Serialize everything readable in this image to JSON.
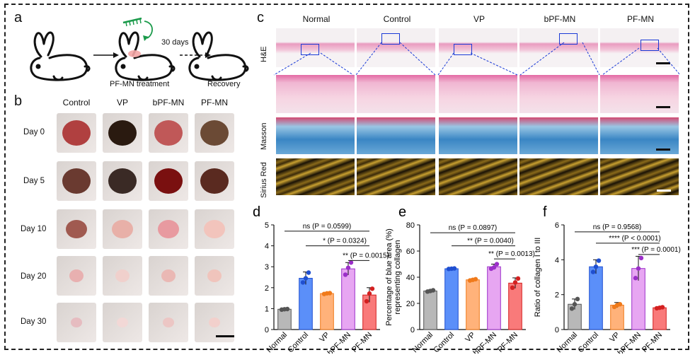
{
  "panel_a": {
    "label": "a",
    "treatment_caption": "PF-MN treatment",
    "interval": "30 days",
    "recovery_caption": "Recovery"
  },
  "panel_b": {
    "label": "b",
    "columns": [
      "Control",
      "VP",
      "bPF-MN",
      "PF-MN"
    ],
    "rows": [
      "Day 0",
      "Day 5",
      "Day 10",
      "Day 20",
      "Day 30"
    ]
  },
  "panel_c": {
    "label": "c",
    "columns": [
      "Normal",
      "Control",
      "VP",
      "bPF-MN",
      "PF-MN"
    ],
    "rows": [
      "H&E",
      "Masson",
      "Sirius Red"
    ]
  },
  "colors": {
    "Normal": "#b8b8b8",
    "Control": "#5b8ff9",
    "VP": "#ffb27a",
    "bPF-MN": "#e7a6f2",
    "PF-MN": "#f97a7a",
    "Normal_pt": "#555555",
    "Control_pt": "#1f4fd1",
    "VP_pt": "#f07a1a",
    "bPF-MN_pt": "#9b2fc9",
    "PF-MN_pt": "#d42020"
  },
  "chart_data": [
    {
      "label": "d",
      "type": "bar",
      "categories": [
        "Normal",
        "Control",
        "VP",
        "bPF-MN",
        "PF-MN"
      ],
      "values": [
        0.97,
        2.45,
        1.72,
        2.9,
        1.65
      ],
      "errors": [
        0.04,
        0.3,
        0.05,
        0.3,
        0.35
      ],
      "points": [
        [
          0.95,
          0.97,
          0.98
        ],
        [
          2.25,
          2.45,
          2.72
        ],
        [
          1.7,
          1.73,
          1.74
        ],
        [
          2.62,
          2.95,
          3.2
        ],
        [
          1.35,
          1.72,
          1.95
        ]
      ],
      "ylabel": "SEI",
      "ylim": [
        0,
        5
      ],
      "yticks": [
        0,
        1,
        2,
        3,
        4,
        5
      ],
      "annotations": [
        {
          "text": "ns (P = 0.0599)",
          "from": 0,
          "to": 4,
          "y": 4.7
        },
        {
          "text": "* (P = 0.0324)",
          "from": 1,
          "to": 4,
          "y": 4.0
        },
        {
          "text": "** (P = 0.0015)",
          "from": 3,
          "to": 4,
          "y": 3.3
        }
      ]
    },
    {
      "label": "e",
      "type": "bar",
      "categories": [
        "Normal",
        "Control",
        "VP",
        "bPF-MN",
        "PF-MN"
      ],
      "values": [
        29.5,
        46.5,
        38.0,
        48.0,
        35.5
      ],
      "errors": [
        0.8,
        0.5,
        0.7,
        2.0,
        4.0
      ],
      "points": [
        [
          29,
          29.5,
          30
        ],
        [
          46.3,
          46.5,
          46.7
        ],
        [
          37.5,
          38,
          38.5
        ],
        [
          46.5,
          47.5,
          50
        ],
        [
          32,
          36,
          39
        ]
      ],
      "ylabel": "Percentage of blue area (%) representing collagen",
      "ylim": [
        0,
        80
      ],
      "yticks": [
        0,
        20,
        40,
        60,
        80
      ],
      "annotations": [
        {
          "text": "ns (P = 0.0897)",
          "from": 0,
          "to": 4,
          "y": 74
        },
        {
          "text": "** (P = 0.0040)",
          "from": 1,
          "to": 4,
          "y": 64
        },
        {
          "text": "** (P = 0.0013)",
          "from": 3,
          "to": 4,
          "y": 54
        }
      ]
    },
    {
      "label": "f",
      "type": "bar",
      "categories": [
        "Normal",
        "Control",
        "VP",
        "bPF-MN",
        "PF-MN"
      ],
      "values": [
        1.45,
        3.6,
        1.4,
        3.5,
        1.25
      ],
      "errors": [
        0.3,
        0.4,
        0.15,
        0.7,
        0.05
      ],
      "points": [
        [
          1.2,
          1.45,
          1.75
        ],
        [
          3.3,
          3.6,
          3.95
        ],
        [
          1.3,
          1.4,
          1.45
        ],
        [
          2.95,
          3.5,
          4.1
        ],
        [
          1.22,
          1.25,
          1.28
        ]
      ],
      "ylabel": "Ratio of collagen I to III",
      "ylim": [
        0,
        6
      ],
      "yticks": [
        0,
        2,
        4,
        6
      ],
      "annotations": [
        {
          "text": "ns (P = 0.9568)",
          "from": 0,
          "to": 4,
          "y": 5.6
        },
        {
          "text": "**** (P < 0.0001)",
          "from": 1,
          "to": 4,
          "y": 4.95
        },
        {
          "text": "*** (P = 0.0001)",
          "from": 3,
          "to": 4,
          "y": 4.3
        }
      ]
    }
  ]
}
